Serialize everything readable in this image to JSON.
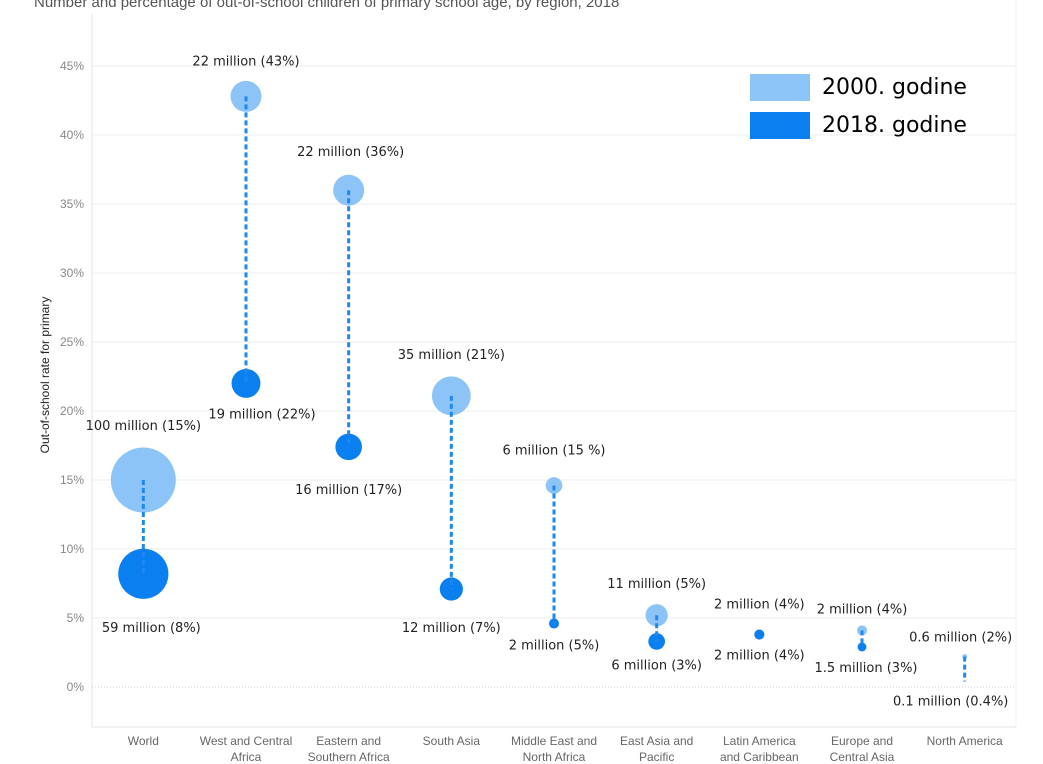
{
  "colors": {
    "y2000": "#8dc4f7",
    "y2018": "#0a7ff0",
    "connector": "#1e88f0",
    "grid": "#ececec",
    "zero": "#cccccc"
  },
  "chart_data": {
    "type": "scatter",
    "title": "Number and percentage of out-of-school children of primary school age, by region, 2018",
    "ylabel": "Out-of-school rate for primary",
    "ylim": [
      -3,
      47
    ],
    "yticks": [
      {
        "value": 0,
        "label": "0%"
      },
      {
        "value": 5,
        "label": "5%"
      },
      {
        "value": 10,
        "label": "10%"
      },
      {
        "value": 15,
        "label": "15%"
      },
      {
        "value": 20,
        "label": "20%"
      },
      {
        "value": 25,
        "label": "25%"
      },
      {
        "value": 30,
        "label": "30%"
      },
      {
        "value": 35,
        "label": "35%"
      },
      {
        "value": 40,
        "label": "40%"
      },
      {
        "value": 45,
        "label": "45%"
      }
    ],
    "categories": [
      {
        "name": [
          "World"
        ],
        "v2000": 15,
        "n2000": 100,
        "label2000": "100 million (15%)",
        "v2018": 8.2,
        "n2018": 59,
        "label2018": "59 million (8%)"
      },
      {
        "name": [
          "West and Central",
          "Africa"
        ],
        "v2000": 42.8,
        "n2000": 22,
        "label2000": "22 million (43%)",
        "v2018": 22,
        "n2018": 19,
        "label2018": "19 million (22%)"
      },
      {
        "name": [
          "Eastern and",
          "Southern Africa"
        ],
        "v2000": 36,
        "n2000": 22,
        "label2000": "22 million (36%)",
        "v2018": 17.4,
        "n2018": 16,
        "label2018": "16 million (17%)"
      },
      {
        "name": [
          "South Asia"
        ],
        "v2000": 21.1,
        "n2000": 35,
        "label2000": "35 million (21%)",
        "v2018": 7.1,
        "n2018": 12,
        "label2018": "12 million (7%)"
      },
      {
        "name": [
          "Middle East and",
          "North Africa"
        ],
        "v2000": 14.6,
        "n2000": 6,
        "label2000": "6 million (15 %)",
        "v2018": 4.6,
        "n2018": 2,
        "label2018": "2 million (5%)"
      },
      {
        "name": [
          "East Asia and",
          "Pacific"
        ],
        "v2000": 5.2,
        "n2000": 11,
        "label2000": "11 million (5%)",
        "v2018": 3.3,
        "n2018": 6,
        "label2018": "6 million (3%)"
      },
      {
        "name": [
          "Latin America",
          "and Caribbean"
        ],
        "v2000": 3.8,
        "n2000": 2,
        "label2000": "2 million (4%)",
        "v2018": 3.8,
        "n2018": 2,
        "label2018": "2 million (4%)"
      },
      {
        "name": [
          "Europe and",
          "Central Asia"
        ],
        "v2000": 4.1,
        "n2000": 2,
        "label2000": "2 million (4%)",
        "v2018": 2.9,
        "n2018": 1.5,
        "label2018": "1.5 million (3%)"
      },
      {
        "name": [
          "North America"
        ],
        "v2000": 2.2,
        "n2000": 0.6,
        "label2000": "0.6 million (2%)",
        "v2018": 0.4,
        "n2018": 0.1,
        "label2018": "0.1 million (0.4%)"
      }
    ],
    "legend": {
      "placement": "top-right",
      "items": [
        {
          "label": "2000. godine",
          "color": "#8dc4f7"
        },
        {
          "label": "2018. godine",
          "color": "#0a7ff0"
        }
      ]
    }
  }
}
